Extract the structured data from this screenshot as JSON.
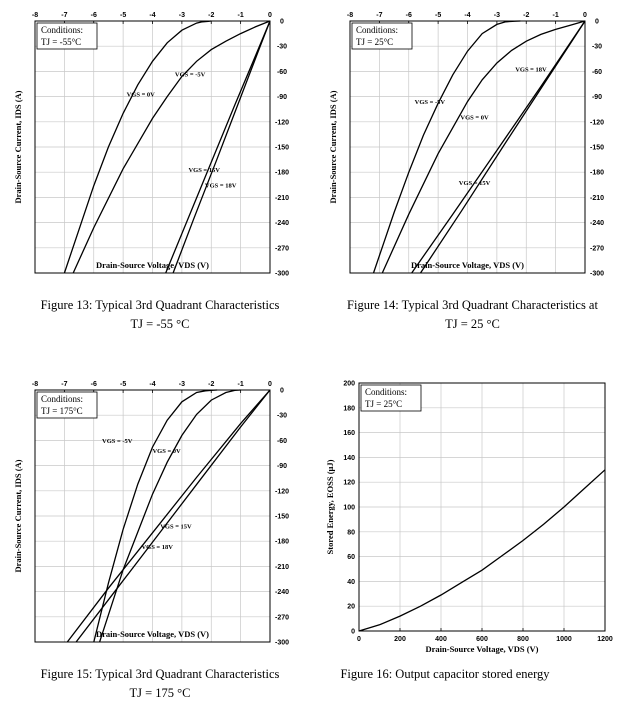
{
  "figures": [
    {
      "caption_line1": "Figure 13: Typical 3rd Quadrant Characteristics",
      "caption_line2": "TJ = -55 °C",
      "cond_title": "Conditions:",
      "cond_value": "TJ = -55°C"
    },
    {
      "caption_line1": "Figure 14: Typical 3rd Quadrant Characteristics at",
      "caption_line2": "TJ = 25 °C",
      "cond_title": "Conditions:",
      "cond_value": "TJ = 25°C"
    },
    {
      "caption_line1": "Figure 15: Typical 3rd Quadrant Characteristics",
      "caption_line2": "TJ = 175 °C",
      "cond_title": "Conditions:",
      "cond_value": "TJ = 175°C"
    },
    {
      "caption_line1": "Figure 16: Output capacitor stored energy",
      "caption_line2": "",
      "cond_title": "Conditions:",
      "cond_value": "TJ = 25°C"
    }
  ],
  "chart_data": [
    {
      "type": "line",
      "xlabel": "Drain-Source Voltage, VDS (V)",
      "ylabel": "Drain-Source Current, IDS (A)",
      "xlim": [
        -8,
        0
      ],
      "ylim": [
        -300,
        0
      ],
      "xticks": [
        -8,
        -7,
        -6,
        -5,
        -4,
        -3,
        -2,
        -1,
        0
      ],
      "yticks": [
        0,
        -30,
        -60,
        -90,
        -120,
        -150,
        -180,
        -210,
        -240,
        -270,
        -300
      ],
      "grid": true,
      "series": [
        {
          "name": "VGS = -5V",
          "x": [
            -7.0,
            -6.5,
            -6.0,
            -5.5,
            -5.0,
            -4.5,
            -4.0,
            -3.5,
            -3.0,
            -2.5,
            -2.3,
            -2.1,
            -2.0
          ],
          "y": [
            -300,
            -248,
            -196,
            -150,
            -110,
            -76,
            -48,
            -26,
            -11,
            -2.5,
            -1,
            -0.3,
            0
          ]
        },
        {
          "name": "VGS = 0V",
          "x": [
            -6.7,
            -6.0,
            -5.0,
            -4.0,
            -3.5,
            -3.0,
            -2.5,
            -2.0,
            -1.5,
            -1.0,
            -0.5,
            0
          ],
          "y": [
            -300,
            -246,
            -176,
            -116,
            -90,
            -66,
            -48,
            -34,
            -24,
            -15,
            -7,
            0
          ]
        },
        {
          "name": "VGS = 15V",
          "x": [
            -3.55,
            -2.8,
            -2.0,
            -1.2,
            -0.5,
            0
          ],
          "y": [
            -300,
            -236,
            -168,
            -100,
            -42,
            0
          ]
        },
        {
          "name": "VGS = 18V",
          "x": [
            -3.3,
            -2.6,
            -1.8,
            -1.0,
            -0.4,
            0
          ],
          "y": [
            -300,
            -236,
            -164,
            -91,
            -36,
            0
          ]
        }
      ],
      "annotations": [
        "VGS = -5V",
        "VGS = 0V",
        "VGS = 15V",
        "VGS = 18V"
      ]
    },
    {
      "type": "line",
      "xlabel": "Drain-Source Voltage, VDS (V)",
      "ylabel": "Drain-Source Current, IDS (A)",
      "xlim": [
        -8,
        0
      ],
      "ylim": [
        -300,
        0
      ],
      "xticks": [
        -8,
        -7,
        -6,
        -5,
        -4,
        -3,
        -2,
        -1,
        0
      ],
      "yticks": [
        0,
        -30,
        -60,
        -90,
        -120,
        -150,
        -180,
        -210,
        -240,
        -270,
        -300
      ],
      "grid": true,
      "series": [
        {
          "name": "VGS = -5V",
          "x": [
            -7.2,
            -6.5,
            -6.0,
            -5.5,
            -5.0,
            -4.5,
            -4.0,
            -3.5,
            -3.0,
            -2.7,
            -2.4,
            -2.2
          ],
          "y": [
            -300,
            -228,
            -180,
            -136,
            -98,
            -64,
            -36,
            -15,
            -4,
            -1,
            -0.2,
            0
          ]
        },
        {
          "name": "VGS = 0V",
          "x": [
            -6.9,
            -6.0,
            -5.0,
            -4.0,
            -3.5,
            -3.0,
            -2.5,
            -2.0,
            -1.5,
            -1.0,
            -0.5,
            0
          ],
          "y": [
            -300,
            -230,
            -158,
            -96,
            -70,
            -50,
            -35,
            -24,
            -16,
            -10,
            -5,
            0
          ]
        },
        {
          "name": "VGS = 15V",
          "x": [
            -5.9,
            -4.5,
            -3.0,
            -1.5,
            -0.5,
            0
          ],
          "y": [
            -300,
            -230,
            -154,
            -78,
            -26,
            0
          ]
        },
        {
          "name": "VGS = 18V",
          "x": [
            -5.6,
            -4.2,
            -2.8,
            -1.4,
            -0.5,
            0
          ],
          "y": [
            -300,
            -226,
            -150,
            -75,
            -27,
            0
          ]
        }
      ],
      "annotations": [
        "VGS = 18V",
        "VGS = -5V",
        "VGS = 0V",
        "VGS = 15V"
      ]
    },
    {
      "type": "line",
      "xlabel": "Drain-Source Voltage, VDS (V)",
      "ylabel": "Drain-Source Current, IDS (A)",
      "xlim": [
        -8,
        0
      ],
      "ylim": [
        -300,
        0
      ],
      "xticks": [
        -8,
        -7,
        -6,
        -5,
        -4,
        -3,
        -2,
        -1,
        0
      ],
      "yticks": [
        0,
        -30,
        -60,
        -90,
        -120,
        -150,
        -180,
        -210,
        -240,
        -270,
        -300
      ],
      "grid": true,
      "series": [
        {
          "name": "VGS = -5V",
          "x": [
            -6.0,
            -5.5,
            -5.0,
            -4.5,
            -4.0,
            -3.5,
            -3.0,
            -2.5,
            -2.2,
            -2.0,
            -1.8
          ],
          "y": [
            -300,
            -230,
            -166,
            -112,
            -68,
            -36,
            -14,
            -3,
            -1,
            -0.3,
            0
          ]
        },
        {
          "name": "VGS = 0V",
          "x": [
            -5.8,
            -5.0,
            -4.0,
            -3.5,
            -3.0,
            -2.5,
            -2.0,
            -1.5,
            -1.2,
            -1.0
          ],
          "y": [
            -300,
            -214,
            -124,
            -86,
            -54,
            -29,
            -12,
            -3,
            -0.5,
            0
          ]
        },
        {
          "name": "VGS = 15V",
          "x": [
            -6.9,
            -5.5,
            -4.0,
            -2.5,
            -1.0,
            0
          ],
          "y": [
            -300,
            -236,
            -170,
            -104,
            -40,
            0
          ]
        },
        {
          "name": "VGS = 18V",
          "x": [
            -6.6,
            -5.2,
            -3.8,
            -2.4,
            -1.0,
            0
          ],
          "y": [
            -300,
            -236,
            -172,
            -108,
            -44,
            0
          ]
        }
      ],
      "annotations": [
        "VGS = -5V",
        "VGS = 0V",
        "VGS = 15V",
        "VGS = 18V"
      ]
    },
    {
      "type": "line",
      "xlabel": "Drain-Source Voltage, VDS (V)",
      "ylabel": "Stored Energy, EOSS (μJ)",
      "xlim": [
        0,
        1200
      ],
      "ylim": [
        0,
        200
      ],
      "xticks": [
        0,
        200,
        400,
        600,
        800,
        1000,
        1200
      ],
      "yticks": [
        0,
        20,
        40,
        60,
        80,
        100,
        120,
        140,
        160,
        180,
        200
      ],
      "grid": true,
      "series": [
        {
          "name": "EOSS",
          "x": [
            0,
            50,
            100,
            200,
            300,
            400,
            500,
            600,
            700,
            800,
            900,
            1000,
            1100,
            1200
          ],
          "y": [
            0,
            2.5,
            5,
            12,
            20,
            29,
            39,
            49,
            61,
            73,
            86,
            100,
            115,
            130
          ]
        }
      ]
    }
  ]
}
